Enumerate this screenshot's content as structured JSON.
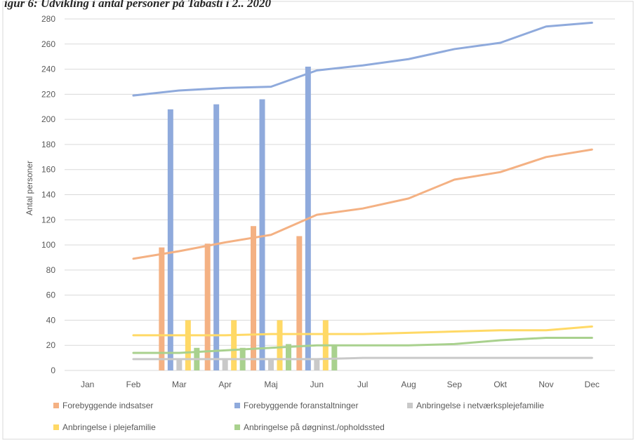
{
  "caption": "igur 6: Udvikling i antal personer på Tabasti i 2.. 2020",
  "chart_data": {
    "type": "bar+line",
    "title": "",
    "xlabel": "",
    "ylabel": "Antal personer",
    "ylim": [
      0,
      280
    ],
    "ytick_step": 20,
    "ytick_labels": [
      "0",
      "20",
      "40",
      "60",
      "80",
      "100",
      "120",
      "140",
      "160",
      "180",
      "200",
      "220",
      "240",
      "260",
      "280"
    ],
    "grid": true,
    "legend_position": "bottom",
    "categories": [
      "Jan",
      "Feb",
      "Mar",
      "Apr",
      "Maj",
      "Jun",
      "Jul",
      "Aug",
      "Sep",
      "Okt",
      "Nov",
      "Dec"
    ],
    "bar_series": [
      {
        "name": "Forebyggende indsatser",
        "color": "#f4b183",
        "values": [
          null,
          null,
          98,
          101,
          115,
          107,
          null,
          null,
          null,
          null,
          null,
          null
        ]
      },
      {
        "name": "Forebyggende foranstaltninger",
        "color": "#8faadc",
        "values": [
          null,
          null,
          208,
          212,
          216,
          242,
          null,
          null,
          null,
          null,
          null,
          null
        ]
      },
      {
        "name": "Anbringelse i netværksplejefamilie",
        "color": "#c9c9c9",
        "values": [
          null,
          null,
          9,
          9,
          9,
          9,
          null,
          null,
          null,
          null,
          null,
          null
        ]
      },
      {
        "name": "Anbringelse i plejefamilie",
        "color": "#ffd966",
        "values": [
          null,
          null,
          40,
          40,
          40,
          40,
          null,
          null,
          null,
          null,
          null,
          null
        ]
      },
      {
        "name": "Anbringelse på døgninst./opholdssted",
        "color": "#a9d18e",
        "values": [
          null,
          null,
          18,
          18,
          21,
          20,
          null,
          null,
          null,
          null,
          null,
          null
        ]
      }
    ],
    "line_series": [
      {
        "color": "#8faadc",
        "values": [
          null,
          219,
          223,
          225,
          226,
          239,
          243,
          248,
          256,
          261,
          274,
          277
        ]
      },
      {
        "color": "#f4b183",
        "values": [
          null,
          89,
          95,
          102,
          108,
          124,
          129,
          137,
          152,
          158,
          170,
          176
        ]
      },
      {
        "color": "#c9c9c9",
        "values": [
          null,
          9,
          9,
          9,
          9,
          9,
          10,
          10,
          10,
          10,
          10,
          10
        ]
      },
      {
        "color": "#ffd966",
        "values": [
          null,
          28,
          28,
          28,
          29,
          29,
          29,
          30,
          31,
          32,
          32,
          35
        ]
      },
      {
        "color": "#a9d18e",
        "values": [
          null,
          14,
          14,
          16,
          18,
          20,
          20,
          20,
          21,
          24,
          26,
          26
        ]
      }
    ]
  }
}
